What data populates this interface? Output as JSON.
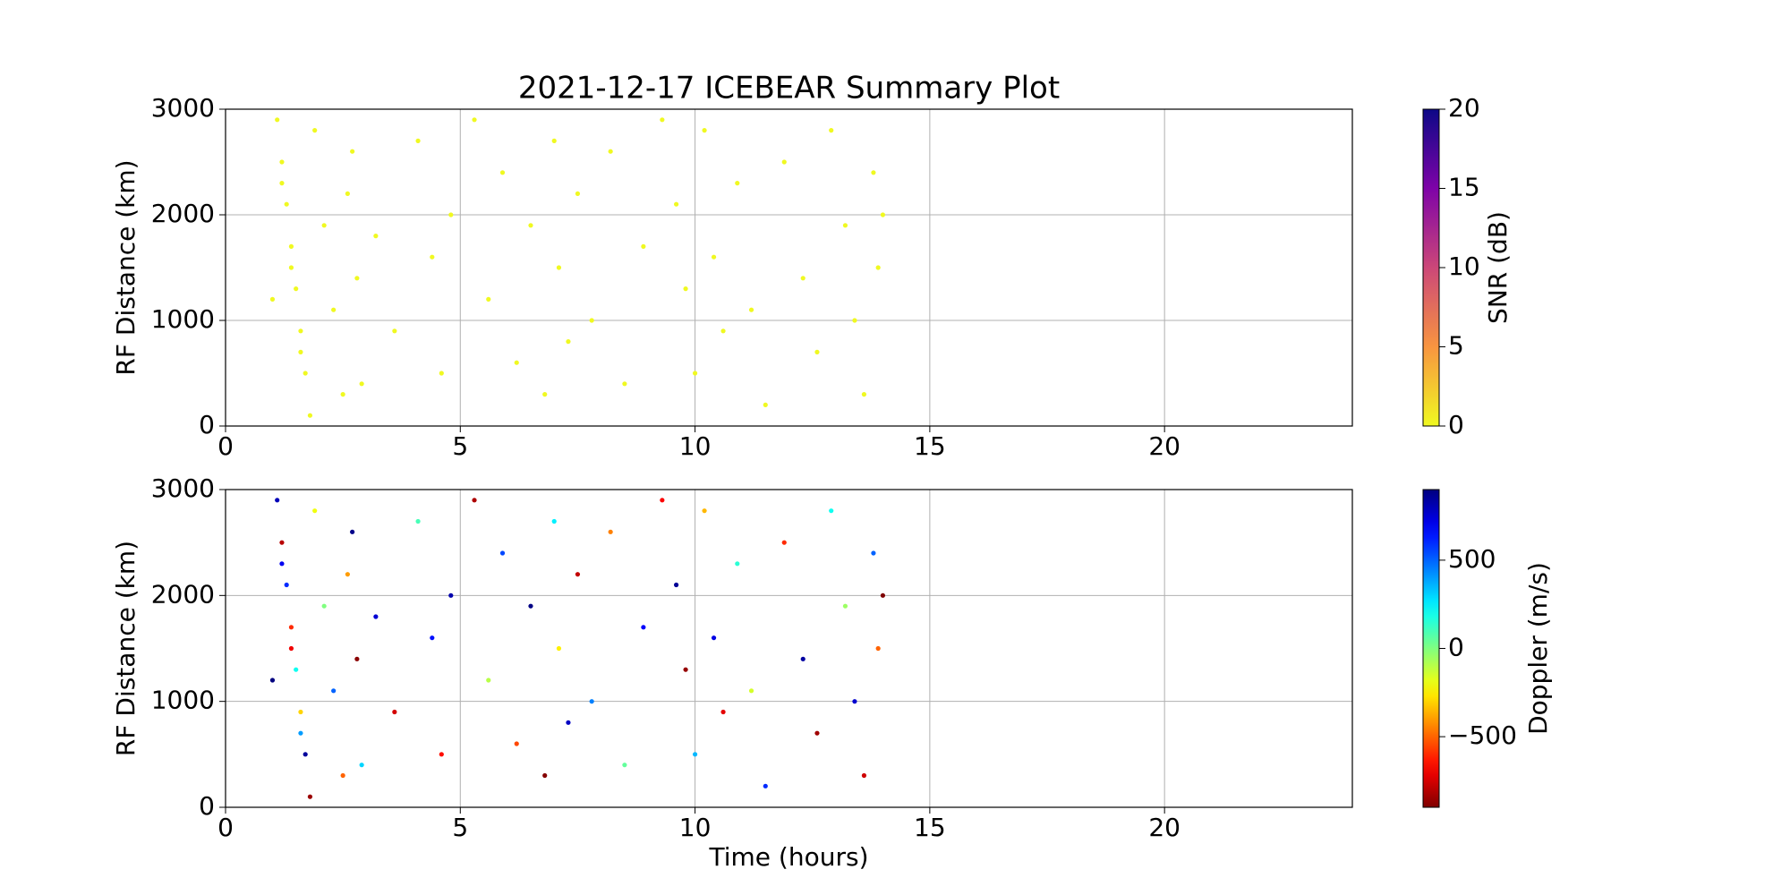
{
  "chart_data": [
    {
      "type": "scatter",
      "title": "2021-12-17 ICEBEAR Summary Plot",
      "ylabel": "RF Distance (km)",
      "x": [
        1.1,
        1.2,
        1.3,
        1.4,
        1.5,
        1.6,
        1.7,
        1.8,
        1.2,
        1.4,
        1.6,
        1.9,
        2.1,
        2.3,
        2.5,
        2.7,
        2.8,
        2.9,
        2.6,
        3.2,
        3.6,
        4.1,
        4.4,
        4.6,
        4.8,
        5.3,
        5.6,
        5.9,
        6.2,
        6.5,
        6.8,
        7.0,
        7.1,
        7.3,
        7.5,
        7.8,
        8.2,
        8.5,
        8.9,
        9.3,
        9.6,
        9.8,
        10.0,
        10.2,
        10.4,
        10.6,
        10.9,
        11.2,
        11.5,
        11.9,
        12.3,
        12.6,
        12.9,
        13.2,
        13.4,
        13.6,
        13.8,
        13.9,
        1.0,
        14.0
      ],
      "y": [
        2900,
        2500,
        2100,
        1700,
        1300,
        900,
        500,
        100,
        2300,
        1500,
        700,
        2800,
        1900,
        1100,
        300,
        2600,
        1400,
        400,
        2200,
        1800,
        900,
        2700,
        1600,
        500,
        2000,
        2900,
        1200,
        2400,
        600,
        1900,
        300,
        2700,
        1500,
        800,
        2200,
        1000,
        2600,
        400,
        1700,
        2900,
        2100,
        1300,
        500,
        2800,
        1600,
        900,
        2300,
        1100,
        200,
        2500,
        1400,
        700,
        2800,
        1900,
        1000,
        300,
        2400,
        1500,
        1200,
        2000
      ],
      "c": [
        0,
        0,
        0,
        0,
        0,
        0,
        0,
        0,
        0,
        0,
        0,
        0,
        0,
        0,
        0,
        0,
        0,
        0,
        0,
        0,
        0,
        0,
        0,
        0,
        0,
        0,
        0,
        0,
        0,
        0,
        0,
        0,
        0,
        0,
        0,
        0,
        0,
        0,
        0,
        0,
        0,
        0,
        0,
        0,
        0,
        0,
        0,
        0,
        0,
        0,
        0,
        0,
        0,
        0,
        0,
        0,
        0,
        0,
        0,
        0
      ],
      "xlim": [
        0,
        24
      ],
      "xticks": [
        0,
        5,
        10,
        15,
        20
      ],
      "ylim": [
        0,
        3000
      ],
      "yticks": [
        0,
        1000,
        2000,
        3000
      ],
      "grid": true,
      "colorbar": {
        "label": "SNR (dB)",
        "colormap": "plasma_r",
        "lim": [
          0,
          20
        ],
        "ticks": [
          0,
          5,
          10,
          15,
          20
        ]
      }
    },
    {
      "type": "scatter",
      "xlabel": "Time (hours)",
      "ylabel": "RF Distance (km)",
      "x": [
        1.1,
        1.2,
        1.3,
        1.4,
        1.5,
        1.6,
        1.7,
        1.8,
        1.2,
        1.4,
        1.6,
        1.9,
        2.1,
        2.3,
        2.5,
        2.7,
        2.8,
        2.9,
        2.6,
        3.2,
        3.6,
        4.1,
        4.4,
        4.6,
        4.8,
        5.3,
        5.6,
        5.9,
        6.2,
        6.5,
        6.8,
        7.0,
        7.1,
        7.3,
        7.5,
        7.8,
        8.2,
        8.5,
        8.9,
        9.3,
        9.6,
        9.8,
        10.0,
        10.2,
        10.4,
        10.6,
        10.9,
        11.2,
        11.5,
        11.9,
        12.3,
        12.6,
        12.9,
        13.2,
        13.4,
        13.6,
        13.8,
        13.9,
        1.0,
        14.0
      ],
      "y": [
        2900,
        2500,
        2100,
        1700,
        1300,
        900,
        500,
        100,
        2300,
        1500,
        700,
        2800,
        1900,
        1100,
        300,
        2600,
        1400,
        400,
        2200,
        1800,
        900,
        2700,
        1600,
        500,
        2000,
        2900,
        1200,
        2400,
        600,
        1900,
        300,
        2700,
        1500,
        800,
        2200,
        1000,
        2600,
        400,
        1700,
        2900,
        2100,
        1300,
        500,
        2800,
        1600,
        900,
        2300,
        1100,
        200,
        2500,
        1400,
        700,
        2800,
        1900,
        1000,
        300,
        2400,
        1500,
        1200,
        2000
      ],
      "c": [
        800,
        -800,
        600,
        -600,
        200,
        -300,
        850,
        -850,
        700,
        -700,
        400,
        -200,
        0,
        500,
        -500,
        880,
        -880,
        300,
        -400,
        750,
        -750,
        100,
        650,
        -650,
        820,
        -820,
        -100,
        550,
        -550,
        890,
        -890,
        250,
        -250,
        780,
        -780,
        450,
        -450,
        50,
        680,
        -680,
        860,
        -860,
        350,
        -350,
        720,
        -720,
        150,
        -150,
        600,
        -600,
        840,
        -840,
        200,
        -50,
        760,
        -760,
        500,
        -500,
        900,
        -900
      ],
      "xlim": [
        0,
        24
      ],
      "xticks": [
        0,
        5,
        10,
        15,
        20
      ],
      "ylim": [
        0,
        3000
      ],
      "yticks": [
        0,
        1000,
        2000,
        3000
      ],
      "grid": true,
      "colorbar": {
        "label": "Doppler (m/s)",
        "colormap": "jet_r",
        "lim": [
          -900,
          900
        ],
        "ticks": [
          {
            "value": -500,
            "label": "−500"
          },
          0,
          500
        ]
      }
    }
  ]
}
